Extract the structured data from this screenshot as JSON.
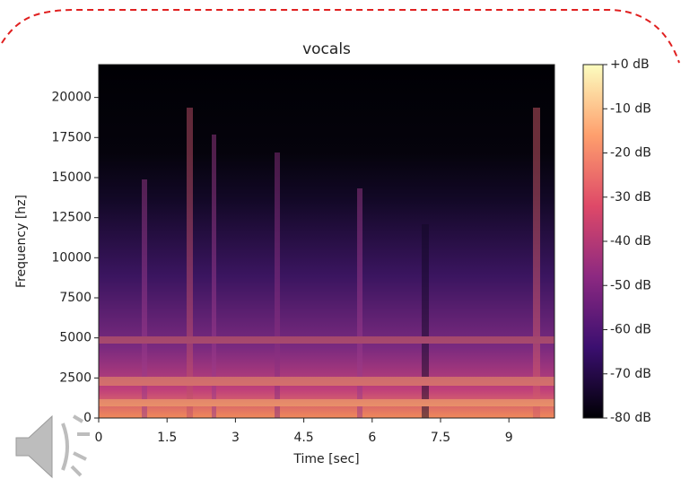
{
  "chart_data": {
    "type": "spectrogram",
    "title": "vocals",
    "xlabel": "Time [sec]",
    "ylabel": "Frequency [hz]",
    "xlim": [
      0,
      10
    ],
    "xticks": [
      0,
      1.5,
      3,
      4.5,
      6,
      7.5,
      9
    ],
    "ylim": [
      0,
      22050
    ],
    "yticks": [
      0,
      2500,
      5000,
      7500,
      10000,
      12500,
      15000,
      17500,
      20000
    ],
    "zlim": [
      -80,
      0
    ],
    "zticks": [
      {
        "value": 0,
        "label": "+0 dB"
      },
      {
        "value": -10,
        "label": "-10 dB"
      },
      {
        "value": -20,
        "label": "-20 dB"
      },
      {
        "value": -30,
        "label": "-30 dB"
      },
      {
        "value": -40,
        "label": "-40 dB"
      },
      {
        "value": -50,
        "label": "-50 dB"
      },
      {
        "value": -60,
        "label": "-60 dB"
      },
      {
        "value": -70,
        "label": "-70 dB"
      },
      {
        "value": -80,
        "label": "-80 dB"
      }
    ],
    "colormap": [
      "#000004",
      "#3b0f70",
      "#8c2981",
      "#de4968",
      "#fe9f6d",
      "#fcfdbf"
    ]
  }
}
